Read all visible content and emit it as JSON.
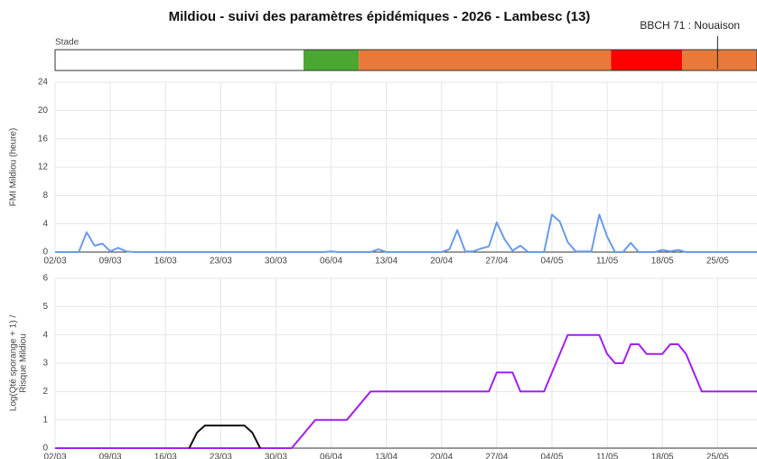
{
  "chart_data": [
    {
      "type": "timeline",
      "title": "Mildiou - suivi des paramètres épidémiques - 2026 - Lambesc (13)",
      "label": "Stade",
      "xlim": [
        "02/03",
        "30/05"
      ],
      "segments": [
        {
          "start": "02/03",
          "end": "02/04",
          "color": "#ffffff"
        },
        {
          "start": "03/04",
          "end": "09/04",
          "color": "#4aa832"
        },
        {
          "start": "10/04",
          "end": "11/05",
          "color": "#e8793a"
        },
        {
          "start": "12/05",
          "end": "20/05",
          "color": "#ff0000"
        },
        {
          "start": "21/05",
          "end": "30/05",
          "color": "#e8793a"
        }
      ],
      "annotation": {
        "text": "BBCH 71 : Nouaison",
        "x": "25/05"
      }
    },
    {
      "type": "line",
      "ylabel": [
        "FMI Mildiou (heure)"
      ],
      "xlim": [
        "02/03",
        "30/05"
      ],
      "xticks": [
        "02/03",
        "09/03",
        "16/03",
        "23/03",
        "30/03",
        "06/04",
        "13/04",
        "20/04",
        "27/04",
        "04/05",
        "11/05",
        "18/05",
        "25/05"
      ],
      "ylim": [
        0,
        24
      ],
      "yticks": [
        0,
        4,
        8,
        12,
        16,
        20,
        24
      ],
      "grid": true,
      "series": [
        {
          "color": "#6a9be8",
          "x": [
            "02/03",
            "05/03",
            "06/03",
            "07/03",
            "08/03",
            "09/03",
            "10/03",
            "11/03",
            "12/03",
            "05/04",
            "06/04",
            "07/04",
            "11/04",
            "12/04",
            "13/04",
            "20/04",
            "21/04",
            "22/04",
            "23/04",
            "24/04",
            "25/04",
            "26/04",
            "27/04",
            "28/04",
            "29/04",
            "30/04",
            "01/05",
            "03/05",
            "04/05",
            "05/05",
            "06/05",
            "07/05",
            "09/05",
            "10/05",
            "11/05",
            "12/05",
            "13/05",
            "14/05",
            "15/05",
            "17/05",
            "18/05",
            "19/05",
            "20/05",
            "21/05",
            "30/05"
          ],
          "values": [
            0,
            0,
            2.8,
            0.9,
            1.2,
            0.1,
            0.6,
            0.1,
            0,
            0,
            0.1,
            0,
            0,
            0.4,
            0,
            0,
            0.4,
            3.1,
            0.1,
            0.1,
            0.5,
            0.8,
            4.2,
            1.8,
            0.2,
            0.9,
            0,
            0,
            5.3,
            4.3,
            1.4,
            0.1,
            0.1,
            5.3,
            2.2,
            0,
            0,
            1.3,
            0,
            0,
            0.3,
            0.1,
            0.3,
            0,
            0
          ]
        }
      ]
    },
    {
      "type": "line",
      "ylabel": [
        "Log(Qté sporange + 1) /",
        "Risque Mildiou"
      ],
      "xlim": [
        "02/03",
        "30/05"
      ],
      "xticks": [
        "02/03",
        "09/03",
        "16/03",
        "23/03",
        "30/03",
        "06/04",
        "13/04",
        "20/04",
        "27/04",
        "04/05",
        "11/05",
        "18/05",
        "25/05"
      ],
      "ylim": [
        0,
        6
      ],
      "yticks": [
        0,
        1,
        2,
        3,
        4,
        5,
        6
      ],
      "grid": true,
      "series": [
        {
          "color": "#a020f0",
          "x": [
            "02/03",
            "01/04",
            "04/04",
            "08/04",
            "11/04",
            "26/04",
            "27/04",
            "29/04",
            "30/04",
            "03/05",
            "06/05",
            "10/05",
            "11/05",
            "12/05",
            "13/05",
            "14/05",
            "15/05",
            "16/05",
            "18/05",
            "19/05",
            "20/05",
            "21/05",
            "23/05",
            "30/05"
          ],
          "values": [
            0,
            0,
            1,
            1,
            2,
            2,
            2.67,
            2.67,
            2,
            2,
            4,
            4,
            3.33,
            3,
            3,
            3.67,
            3.67,
            3.33,
            3.33,
            3.67,
            3.67,
            3.33,
            2,
            2
          ]
        },
        {
          "color": "#111111",
          "x": [
            "19/03",
            "20/03",
            "21/03",
            "26/03",
            "27/03",
            "28/03"
          ],
          "values": [
            0,
            0.55,
            0.8,
            0.8,
            0.55,
            0
          ]
        }
      ]
    }
  ]
}
